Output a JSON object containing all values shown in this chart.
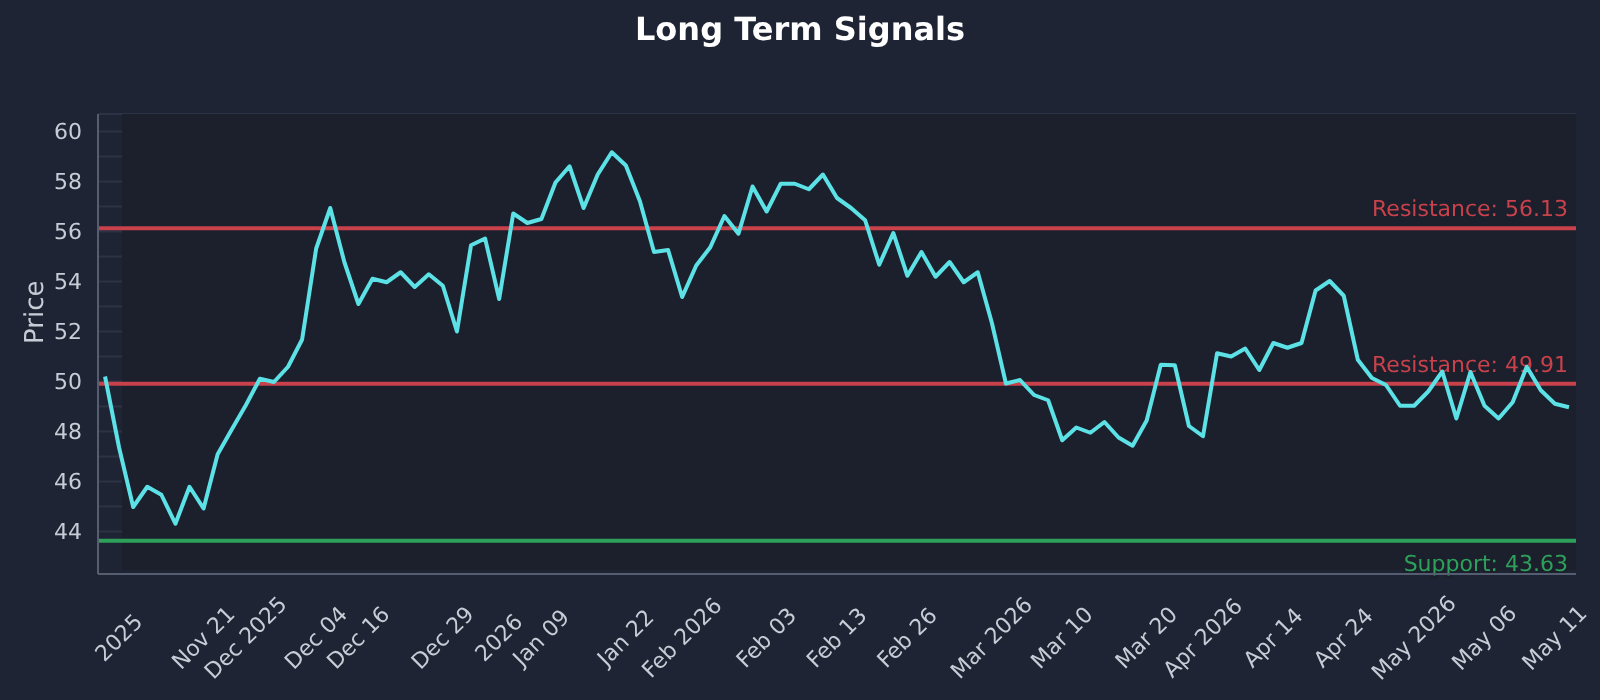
{
  "chart_data": {
    "type": "line",
    "title": "Long Term Signals",
    "ylabel": "Price",
    "categories": [
      null,
      "2025",
      null,
      null,
      null,
      null,
      null,
      "Nov 21",
      null,
      null,
      "Dec 2025",
      null,
      null,
      null,
      null,
      "Dec 04",
      null,
      null,
      "Dec 16",
      null,
      null,
      null,
      null,
      null,
      "Dec 29",
      null,
      null,
      null,
      "2026",
      null,
      null,
      "Jan 09",
      null,
      null,
      null,
      null,
      null,
      "Jan 22",
      null,
      null,
      null,
      "Feb 2026",
      null,
      null,
      null,
      null,
      null,
      "Feb 03",
      null,
      null,
      null,
      null,
      "Feb 13",
      null,
      null,
      null,
      null,
      "Feb 26",
      null,
      null,
      null,
      null,
      null,
      "Mar 2026",
      null,
      null,
      null,
      null,
      "Mar 10",
      null,
      null,
      null,
      null,
      null,
      "Mar 20",
      null,
      null,
      null,
      "Apr 2026",
      null,
      null,
      null,
      null,
      "Apr 14",
      null,
      null,
      null,
      null,
      "Apr 24",
      null,
      null,
      null,
      null,
      "May 2026",
      null,
      null,
      null,
      null,
      "May 06",
      null,
      null,
      null,
      null,
      "May 11",
      null
    ],
    "series": [
      {
        "color": "#5ce1e6",
        "values": [
          50.2,
          47.35,
          44.98,
          45.79,
          45.47,
          44.31,
          45.79,
          44.92,
          47.09,
          48.08,
          49.05,
          50.11,
          49.98,
          50.59,
          51.68,
          55.32,
          56.94,
          54.78,
          53.1,
          54.11,
          53.97,
          54.37,
          53.78,
          54.29,
          53.83,
          52.0,
          55.45,
          55.72,
          53.3,
          56.72,
          56.34,
          56.5,
          57.96,
          58.61,
          56.94,
          58.28,
          59.17,
          58.64,
          57.21,
          55.18,
          55.26,
          53.38,
          54.64,
          55.37,
          56.62,
          55.91,
          57.8,
          56.8,
          57.91,
          57.91,
          57.69,
          58.28,
          57.34,
          56.94,
          56.45,
          54.67,
          55.94,
          54.23,
          55.18,
          54.19,
          54.78,
          53.97,
          54.37,
          52.35,
          49.92,
          50.06,
          49.46,
          49.25,
          47.65,
          48.16,
          47.95,
          48.38,
          47.76,
          47.43,
          48.44,
          50.67,
          50.65,
          48.22,
          47.81,
          51.13,
          51.0,
          51.32,
          50.46,
          51.54,
          51.35,
          51.54,
          53.64,
          54.02,
          53.43,
          50.87,
          50.14,
          49.86,
          49.03,
          49.03,
          49.6,
          50.4,
          48.52,
          50.38,
          49.03,
          48.52,
          49.17,
          50.59,
          49.65,
          49.11,
          48.97
        ]
      }
    ],
    "ylim": [
      42.3,
      60.7
    ],
    "yticks": [
      44,
      {
        "value": 45,
        "label": null
      },
      46,
      {
        "value": 47,
        "label": null
      },
      48,
      {
        "value": 49,
        "label": null
      },
      50,
      {
        "value": 51,
        "label": null
      },
      52,
      {
        "value": 53,
        "label": null
      },
      54,
      {
        "value": 55,
        "label": null
      },
      56,
      {
        "value": 57,
        "label": null
      },
      58,
      {
        "value": 59,
        "label": null
      },
      60
    ],
    "grid": "y",
    "legend": false,
    "marker": "none",
    "line_style": "solid",
    "ref_lines": [
      {
        "axis": "y",
        "value": 56.13,
        "label": "Resistance: 56.13",
        "color": "#c8414b"
      },
      {
        "axis": "y",
        "value": 49.91,
        "label": "Resistance: 49.91",
        "color": "#c8414b"
      },
      {
        "axis": "y",
        "value": 43.63,
        "label": "Support: 43.63",
        "color": "#2ea05a"
      }
    ]
  }
}
